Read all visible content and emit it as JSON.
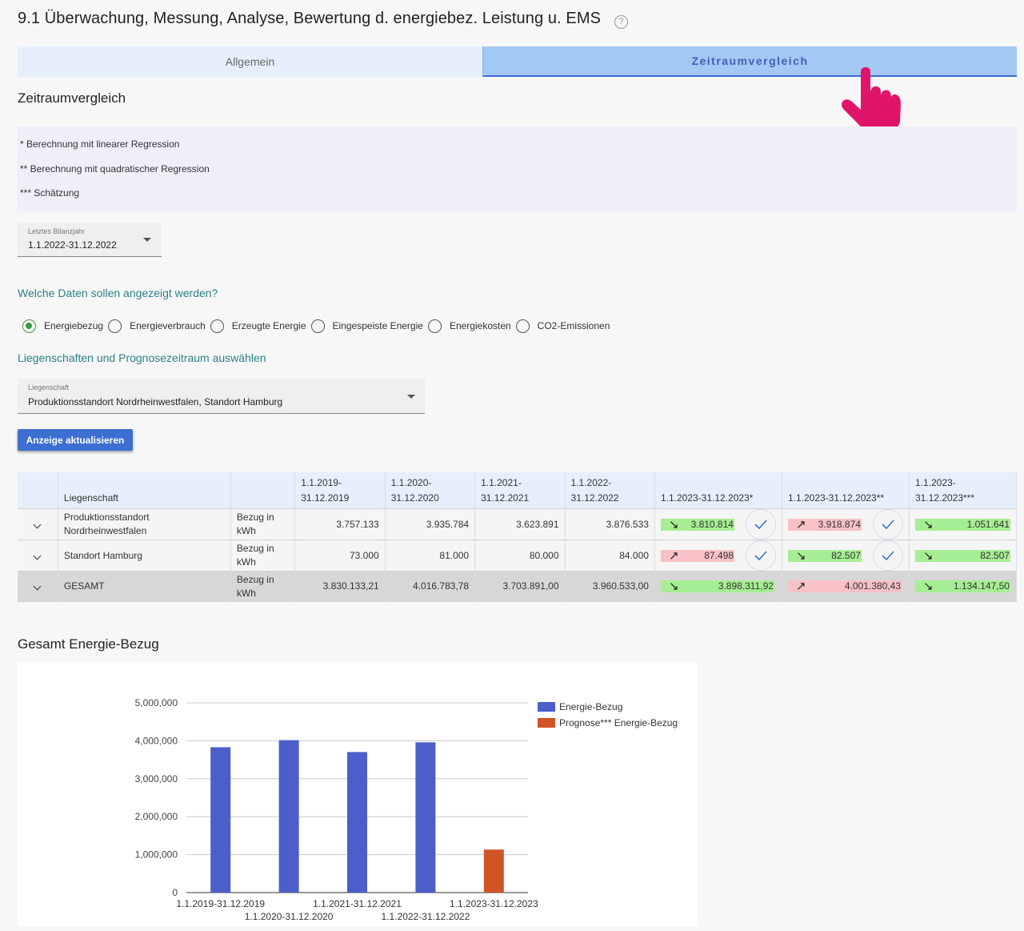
{
  "page": {
    "title": "9.1 Überwachung, Messung, Analyse, Bewertung d. energiebez. Leistung u. EMS",
    "help_icon": "?"
  },
  "tabs": [
    {
      "label": "Allgemein",
      "active": false
    },
    {
      "label": "Zeitraumvergleich",
      "active": true
    }
  ],
  "section": {
    "title": "Zeitraumvergleich"
  },
  "notes": [
    "* Berechnung mit linearer Regression",
    "** Berechnung mit quadratischer Regression",
    "*** Schätzung"
  ],
  "year_select": {
    "label": "Letztes Bilanzjahr",
    "value": "1.1.2022-31.12.2022"
  },
  "data_question": "Welche Daten sollen angezeigt werden?",
  "radio_options": [
    {
      "label": "Energiebezug",
      "selected": true
    },
    {
      "label": "Energieverbrauch",
      "selected": false
    },
    {
      "label": "Erzeugte Energie",
      "selected": false
    },
    {
      "label": "Eingespeiste Energie",
      "selected": false
    },
    {
      "label": "Energiekosten",
      "selected": false
    },
    {
      "label": "CO2-Emissionen",
      "selected": false
    }
  ],
  "property_question": "Liegenschaften und Prognosezeitraum auswählen",
  "property_select": {
    "label": "Liegenschaft",
    "value": "Produktionsstandort Nordrheinwestfalen, Standort Hamburg"
  },
  "refresh_button": "Anzeige aktualisieren",
  "table": {
    "headers": {
      "property": "Liegenschaft",
      "p2019": "1.1.2019-31.12.2019",
      "p2020": "1.1.2020-31.12.2020",
      "p2021": "1.1.2021-31.12.2021",
      "p2022": "1.1.2022-31.12.2022",
      "f_lin": "1.1.2023-31.12.2023*",
      "f_quad": "1.1.2023-31.12.2023**",
      "f_est": "1.1.2023-31.12.2023***"
    },
    "rows": [
      {
        "name": "Produktionsstandort Nordrheinwestfalen",
        "unit": "Bezug in kWh",
        "v2019": "3.757.133",
        "v2020": "3.935.784",
        "v2021": "3.623.891",
        "v2022": "3.876.533",
        "f_lin": {
          "value": "3.810.814",
          "trend": "down",
          "status": "green",
          "checked": true
        },
        "f_quad": {
          "value": "3.918.874",
          "trend": "up",
          "status": "red",
          "checked": true
        },
        "f_est": {
          "value": "1.051.641",
          "trend": "down",
          "status": "green"
        }
      },
      {
        "name": "Standort Hamburg",
        "unit": "Bezug in kWh",
        "v2019": "73.000",
        "v2020": "81.000",
        "v2021": "80.000",
        "v2022": "84.000",
        "f_lin": {
          "value": "87.498",
          "trend": "up",
          "status": "red",
          "checked": true
        },
        "f_quad": {
          "value": "82.507",
          "trend": "down",
          "status": "green",
          "checked": true
        },
        "f_est": {
          "value": "82.507",
          "trend": "down",
          "status": "green"
        }
      },
      {
        "name": "GESAMT",
        "unit": "Bezug in kWh",
        "v2019": "3.830.133,21",
        "v2020": "4.016.783,78",
        "v2021": "3.703.891,00",
        "v2022": "3.960.533,00",
        "f_lin": {
          "value": "3.898.311,92",
          "trend": "down",
          "status": "green"
        },
        "f_quad": {
          "value": "4.001.380,43",
          "trend": "up",
          "status": "red"
        },
        "f_est": {
          "value": "1.134.147,50",
          "trend": "down",
          "status": "green"
        }
      }
    ]
  },
  "chart_title": "Gesamt Energie-Bezug",
  "chart_data": {
    "type": "bar",
    "categories": [
      "1.1.2019-31.12.2019",
      "1.1.2020-31.12.2020",
      "1.1.2021-31.12.2021",
      "1.1.2022-31.12.2022",
      "1.1.2023-31.12.2023"
    ],
    "series": [
      {
        "name": "Energie-Bezug",
        "color": "#4b5ec9",
        "values": [
          3830133.21,
          4016783.78,
          3703891.0,
          3960533.0,
          null
        ]
      },
      {
        "name": "Prognose*** Energie-Bezug",
        "color": "#d05425",
        "values": [
          null,
          null,
          null,
          null,
          1134147.5
        ]
      }
    ],
    "yticks": [
      "0",
      "1,000,000",
      "2,000,000",
      "3,000,000",
      "4,000,000",
      "5,000,000"
    ],
    "ylim": [
      0,
      5000000
    ],
    "legend": "right",
    "grid": true
  },
  "icons": {
    "hand": "pointing-hand-icon",
    "check": "check-icon",
    "expand": "chevron-down-icon",
    "dropdown": "caret-down-icon"
  },
  "colors": {
    "accent": "#3d6fd1",
    "tab_active": "#a4c8f4",
    "teal_text": "#2a8088",
    "good": "#a6ee93",
    "bad": "#f7c1c6",
    "pointer": "#e2146a"
  }
}
